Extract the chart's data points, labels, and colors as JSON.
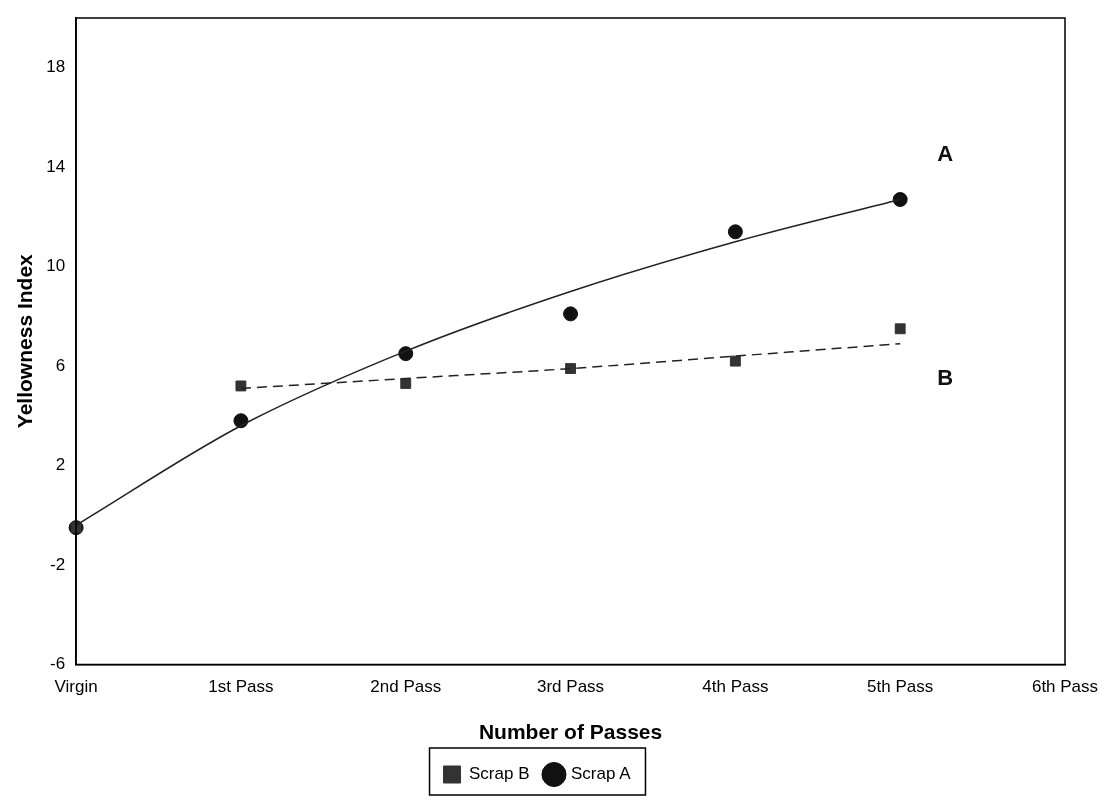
{
  "chart_data": {
    "type": "scatter",
    "xlabel": "Number of Passes",
    "ylabel": "Yellowness Index",
    "categories": [
      "Virgin",
      "1st Pass",
      "2nd Pass",
      "3rd Pass",
      "4th Pass",
      "5th Pass",
      "6th Pass"
    ],
    "ylim": [
      -6,
      20
    ],
    "yticks": [
      -6,
      -2,
      2,
      6,
      10,
      14,
      18
    ],
    "grid": false,
    "legend": "bottom",
    "series": [
      {
        "name": "Scrap A",
        "marker": "circle",
        "color": "#111111",
        "values": [
          -0.5,
          3.8,
          6.5,
          8.1,
          11.4,
          12.7,
          null
        ]
      },
      {
        "name": "Scrap B",
        "marker": "square",
        "color": "#333333",
        "values": [
          -0.5,
          5.2,
          5.3,
          5.9,
          6.2,
          7.5,
          null
        ]
      },
      {
        "type": "line",
        "marker": "none",
        "line_style": "solid",
        "color": "#222222",
        "values": [
          -0.4,
          3.6,
          6.6,
          9.0,
          11.0,
          12.7,
          null
        ]
      },
      {
        "type": "line",
        "marker": "none",
        "line_style": "dashed",
        "color": "#222222",
        "values": [
          null,
          5.1,
          5.5,
          5.9,
          6.4,
          6.9,
          null
        ]
      }
    ],
    "annotations": [
      "A",
      "B"
    ]
  }
}
